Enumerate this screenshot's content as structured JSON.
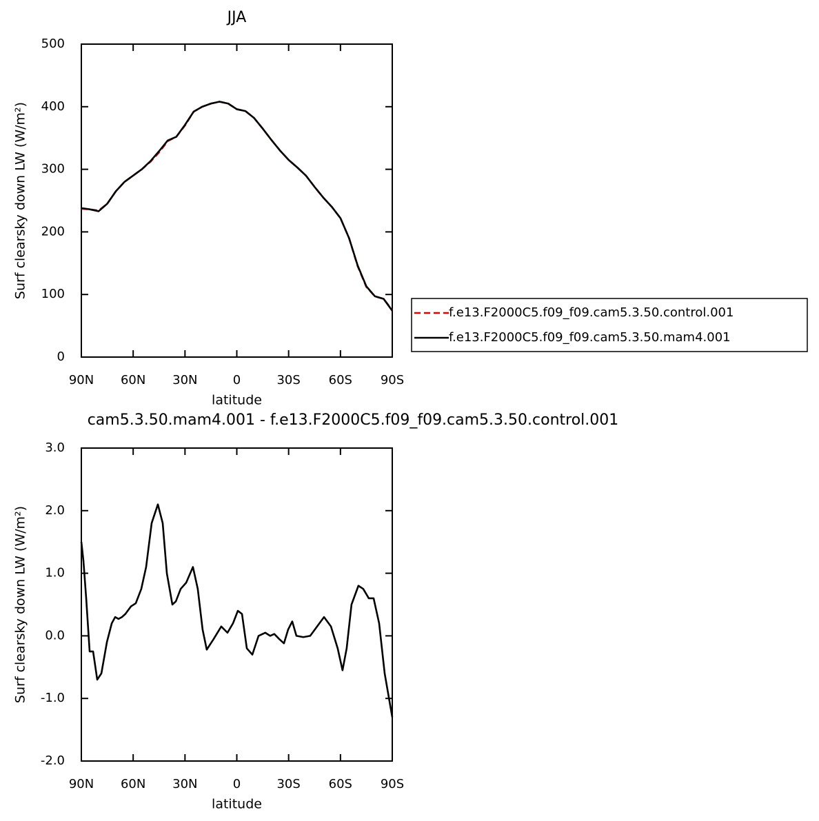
{
  "chart_data": [
    {
      "type": "line",
      "title": "JJA",
      "x_label": "latitude",
      "y_label": "Surf clearsky down LW (W/m²)",
      "x": [
        90,
        85,
        80,
        75,
        70,
        65,
        60,
        55,
        50,
        45,
        40,
        35,
        30,
        25,
        20,
        15,
        10,
        5,
        0,
        -5,
        -10,
        -15,
        -20,
        -25,
        -30,
        -35,
        -40,
        -45,
        -50,
        -55,
        -60,
        -65,
        -70,
        -75,
        -80,
        -85,
        -90
      ],
      "xlim": [
        90,
        -90
      ],
      "xticks": [
        {
          "value": 90,
          "label": "90N"
        },
        {
          "value": 60,
          "label": "60N"
        },
        {
          "value": 30,
          "label": "30N"
        },
        0,
        {
          "value": -30,
          "label": "30S"
        },
        {
          "value": -60,
          "label": "60S"
        },
        {
          "value": -90,
          "label": "90S"
        }
      ],
      "ylim": [
        0,
        500
      ],
      "yticks": [
        0,
        100,
        200,
        300,
        400,
        500
      ],
      "legend": "right",
      "series": [
        {
          "name": "f.e13.F2000C5.f09_f09.cam5.3.50.control.001",
          "color": "#e00000",
          "line_style": "dashed",
          "values": [
            237,
            236,
            234,
            245,
            265,
            280,
            290,
            300,
            312,
            327,
            345,
            352,
            370,
            392,
            400,
            405,
            408,
            405,
            396,
            393,
            382,
            365,
            347,
            330,
            315,
            303,
            290,
            272,
            255,
            240,
            222,
            190,
            145,
            112,
            97,
            93,
            75
          ]
        },
        {
          "name": "f.e13.F2000C5.f09_f09.cam5.3.50.mam4.001",
          "color": "#000000",
          "line_style": "solid",
          "values": [
            238,
            236,
            233,
            245,
            265,
            280,
            290,
            300,
            313,
            329,
            346,
            352,
            371,
            392,
            400,
            405,
            408,
            405,
            396,
            393,
            382,
            365,
            347,
            330,
            315,
            303,
            290,
            272,
            255,
            240,
            222,
            190,
            146,
            113,
            97,
            93,
            74
          ]
        }
      ]
    },
    {
      "type": "line",
      "title": "cam5.3.50.mam4.001 - f.e13.F2000C5.f09_f09.cam5.3.50.control.001",
      "x_label": "latitude",
      "y_label": "Surf clearsky down LW (W/m²)",
      "x": [
        90,
        88.8,
        87.2,
        85.2,
        83.2,
        80.8,
        78.4,
        75.2,
        72.4,
        70.4,
        68.5,
        66.5,
        64.5,
        61.3,
        58.5,
        55.3,
        52.5,
        49.3,
        45.7,
        42.9,
        40.5,
        37.3,
        35.3,
        32.5,
        29.3,
        25.4,
        22.6,
        19.8,
        17.4,
        13.4,
        9,
        5.4,
        2.2,
        -0.6,
        -3,
        -5.8,
        -9,
        -12.6,
        -16.5,
        -19.3,
        -21.7,
        -24.5,
        -27.3,
        -29.7,
        -32.1,
        -34.5,
        -38.5,
        -42.5,
        -46.5,
        -50.5,
        -54.5,
        -58.4,
        -61.2,
        -63.6,
        -66.4,
        -70.4,
        -73.2,
        -76.4,
        -79.2,
        -82.4,
        -85.6,
        -90
      ],
      "xlim": [
        90,
        -90
      ],
      "xticks": [
        {
          "value": 90,
          "label": "90N"
        },
        {
          "value": 60,
          "label": "60N"
        },
        {
          "value": 30,
          "label": "30N"
        },
        0,
        {
          "value": -30,
          "label": "30S"
        },
        {
          "value": -60,
          "label": "60S"
        },
        {
          "value": -90,
          "label": "90S"
        }
      ],
      "ylim": [
        -2,
        3
      ],
      "yticks": [
        {
          "value": -2,
          "label": "-2.0"
        },
        {
          "value": -1,
          "label": "-1.0"
        },
        {
          "value": 0,
          "label": "0.0"
        },
        {
          "value": 1,
          "label": "1.0"
        },
        {
          "value": 2,
          "label": "2.0"
        },
        {
          "value": 3,
          "label": "3.0"
        }
      ],
      "series": [
        {
          "color": "#000000",
          "line_style": "solid",
          "values": [
            1.5,
            1.2,
            0.6,
            -0.25,
            -0.25,
            -0.7,
            -0.6,
            -0.1,
            0.2,
            0.3,
            0.27,
            0.3,
            0.35,
            0.47,
            0.52,
            0.75,
            1.1,
            1.8,
            2.1,
            1.8,
            1.0,
            0.5,
            0.55,
            0.75,
            0.85,
            1.1,
            0.75,
            0.1,
            -0.22,
            -0.05,
            0.15,
            0.05,
            0.2,
            0.4,
            0.35,
            -0.2,
            -0.3,
            0.0,
            0.05,
            0.0,
            0.03,
            -0.05,
            -0.12,
            0.1,
            0.23,
            0.0,
            -0.02,
            0.0,
            0.15,
            0.3,
            0.15,
            -0.2,
            -0.55,
            -0.2,
            0.5,
            0.8,
            0.75,
            0.6,
            0.6,
            0.2,
            -0.6,
            -1.3
          ]
        }
      ]
    }
  ]
}
